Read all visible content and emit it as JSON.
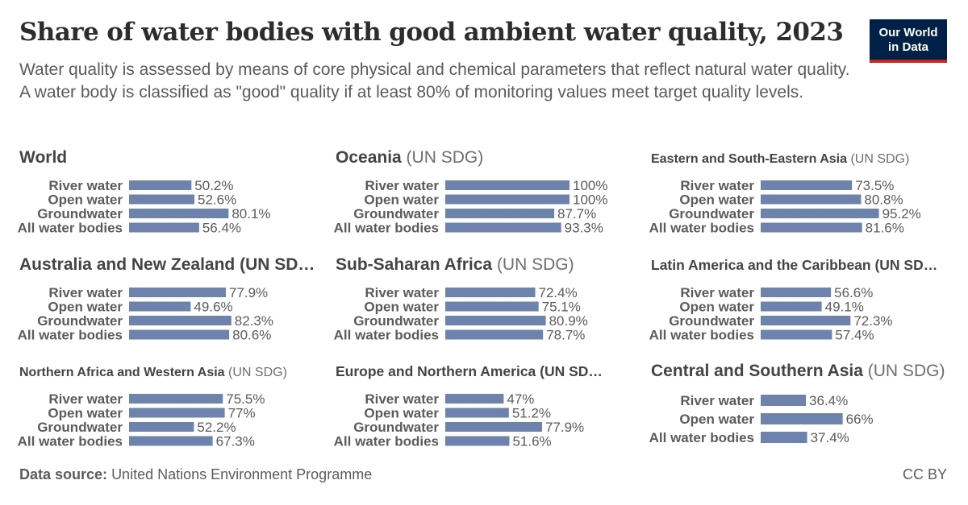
{
  "header": {
    "title": "Share of water bodies with good ambient water quality, 2023",
    "subtitle": "Water quality is assessed by means of core physical and chemical parameters that reflect natural water quality. A water body is classified as \"good\" quality if at least 80% of monitoring values meet target quality levels."
  },
  "logo": {
    "line1": "Our World",
    "line2": "in Data"
  },
  "footer": {
    "source_label": "Data source:",
    "source_value": "United Nations Environment Programme",
    "license": "CC BY"
  },
  "colors": {
    "bar": "#6d83ae",
    "label": "#5b5b5b",
    "title": "#444444",
    "suffix": "#6e6e6e"
  },
  "chart_data": [
    {
      "type": "bar",
      "orientation": "horizontal",
      "title": "World",
      "title_suffix": "",
      "xlim": [
        0,
        100
      ],
      "categories": [
        "River water",
        "Open water",
        "Groundwater",
        "All water bodies"
      ],
      "values": [
        50.2,
        52.6,
        80.1,
        56.4
      ],
      "value_labels": [
        "50.2%",
        "52.6%",
        "80.1%",
        "56.4%"
      ]
    },
    {
      "type": "bar",
      "orientation": "horizontal",
      "title": "Oceania",
      "title_suffix": "(UN SDG)",
      "xlim": [
        0,
        100
      ],
      "categories": [
        "River water",
        "Open water",
        "Groundwater",
        "All water bodies"
      ],
      "values": [
        100,
        100,
        87.7,
        93.3
      ],
      "value_labels": [
        "100%",
        "100%",
        "87.7%",
        "93.3%"
      ]
    },
    {
      "type": "bar",
      "orientation": "horizontal",
      "title": "Eastern and South-Eastern Asia",
      "title_suffix": "(UN SDG)",
      "xlim": [
        0,
        100
      ],
      "categories": [
        "River water",
        "Open water",
        "Groundwater",
        "All water bodies"
      ],
      "values": [
        73.5,
        80.8,
        95.2,
        81.6
      ],
      "value_labels": [
        "73.5%",
        "80.8%",
        "95.2%",
        "81.6%"
      ]
    },
    {
      "type": "bar",
      "orientation": "horizontal",
      "title": "Australia and New Zealand (UN SD…",
      "title_suffix": "",
      "xlim": [
        0,
        100
      ],
      "categories": [
        "River water",
        "Open water",
        "Groundwater",
        "All water bodies"
      ],
      "values": [
        77.9,
        49.6,
        82.3,
        80.6
      ],
      "value_labels": [
        "77.9%",
        "49.6%",
        "82.3%",
        "80.6%"
      ]
    },
    {
      "type": "bar",
      "orientation": "horizontal",
      "title": "Sub-Saharan Africa",
      "title_suffix": "(UN SDG)",
      "xlim": [
        0,
        100
      ],
      "categories": [
        "River water",
        "Open water",
        "Groundwater",
        "All water bodies"
      ],
      "values": [
        72.4,
        75.1,
        80.9,
        78.7
      ],
      "value_labels": [
        "72.4%",
        "75.1%",
        "80.9%",
        "78.7%"
      ]
    },
    {
      "type": "bar",
      "orientation": "horizontal",
      "title": "Latin America and the Caribbean (UN SD…",
      "title_suffix": "",
      "xlim": [
        0,
        100
      ],
      "categories": [
        "River water",
        "Open water",
        "Groundwater",
        "All water bodies"
      ],
      "values": [
        56.6,
        49.1,
        72.3,
        57.4
      ],
      "value_labels": [
        "56.6%",
        "49.1%",
        "72.3%",
        "57.4%"
      ]
    },
    {
      "type": "bar",
      "orientation": "horizontal",
      "title": "Northern Africa and Western Asia",
      "title_suffix": "(UN SDG)",
      "xlim": [
        0,
        100
      ],
      "categories": [
        "River water",
        "Open water",
        "Groundwater",
        "All water bodies"
      ],
      "values": [
        75.5,
        77,
        52.2,
        67.3
      ],
      "value_labels": [
        "75.5%",
        "77%",
        "52.2%",
        "67.3%"
      ]
    },
    {
      "type": "bar",
      "orientation": "horizontal",
      "title": "Europe and Northern America (UN SD…",
      "title_suffix": "",
      "xlim": [
        0,
        100
      ],
      "categories": [
        "River water",
        "Open water",
        "Groundwater",
        "All water bodies"
      ],
      "values": [
        47,
        51.2,
        77.9,
        51.6
      ],
      "value_labels": [
        "47%",
        "51.2%",
        "77.9%",
        "51.6%"
      ]
    },
    {
      "type": "bar",
      "orientation": "horizontal",
      "title": "Central and Southern Asia",
      "title_suffix": "(UN SDG)",
      "xlim": [
        0,
        100
      ],
      "categories": [
        "River water",
        "Open water",
        "All water bodies"
      ],
      "values": [
        36.4,
        66,
        37.4
      ],
      "value_labels": [
        "36.4%",
        "66%",
        "37.4%"
      ]
    }
  ]
}
